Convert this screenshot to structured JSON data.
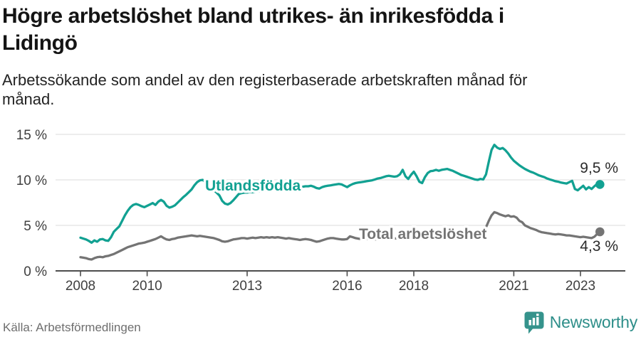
{
  "page": {
    "title_lines": [
      "Högre arbetslöshet bland utrikes- än inrikesfödda i",
      "Lidingö"
    ],
    "subtitle_lines": [
      "Arbetssökande som andel av den registerbaserade arbetskraften månad för",
      "månad."
    ],
    "source": "Källa: Arbetsförmedlingen",
    "brand": "Newsworthy"
  },
  "colors": {
    "foreign_born_line": "#12a192",
    "total_line": "#747474",
    "grid": "#e2e2e2",
    "axis": "#4d4d4d",
    "axis_text": "#3f3f3f",
    "value_label_text": "#2b2b2b",
    "logo_teal": "#35938c"
  },
  "chart_data": {
    "type": "line",
    "title": "Högre arbetslöshet bland utrikes- än inrikesfödda i Lidingö",
    "subtitle": "Arbetssökande som andel av den registerbaserade arbetskraften månad för månad.",
    "x_unit": "month",
    "x_start": "2008-01",
    "x_end": "2023-08",
    "xtick_years": [
      2008,
      2010,
      2013,
      2016,
      2018,
      2021,
      2023
    ],
    "ytick_values": [
      0,
      5,
      10,
      15
    ],
    "ytick_labels": [
      "0 %",
      "5 %",
      "10 %",
      "15 %"
    ],
    "ylim": [
      0,
      16.5
    ],
    "grid": "horizontal",
    "legend_position": "inline-labels",
    "source": "Källa: Arbetsförmedlingen",
    "series": [
      {
        "name": "Utlandsfödda",
        "color": "#12a192",
        "end_label": "9,5 %",
        "end_value": 9.5,
        "values": [
          3.65,
          3.55,
          3.45,
          3.3,
          3.1,
          3.35,
          3.2,
          3.45,
          3.5,
          3.35,
          3.3,
          3.7,
          4.3,
          4.6,
          4.9,
          5.5,
          6.1,
          6.6,
          7.0,
          7.25,
          7.35,
          7.25,
          7.1,
          7.0,
          7.15,
          7.3,
          7.45,
          7.25,
          7.6,
          7.8,
          7.6,
          7.15,
          6.95,
          7.05,
          7.2,
          7.5,
          7.8,
          8.1,
          8.35,
          8.65,
          8.95,
          9.4,
          9.75,
          9.95,
          10.0,
          9.75,
          9.45,
          9.1,
          8.85,
          8.6,
          8.3,
          7.7,
          7.4,
          7.3,
          7.45,
          7.75,
          8.1,
          8.45,
          8.55,
          8.6,
          8.6,
          8.65,
          8.65,
          8.7,
          8.75,
          8.75,
          8.8,
          8.8,
          8.85,
          8.9,
          8.95,
          9.0,
          9.0,
          9.05,
          9.05,
          9.1,
          9.15,
          9.15,
          9.2,
          9.2,
          9.25,
          9.3,
          9.3,
          9.35,
          9.25,
          9.1,
          9.05,
          9.2,
          9.3,
          9.35,
          9.4,
          9.45,
          9.5,
          9.55,
          9.5,
          9.35,
          9.2,
          9.4,
          9.55,
          9.65,
          9.7,
          9.75,
          9.8,
          9.85,
          9.9,
          9.95,
          10.05,
          10.15,
          10.2,
          10.3,
          10.4,
          10.45,
          10.4,
          10.35,
          10.4,
          10.6,
          11.1,
          10.4,
          10.1,
          10.55,
          10.9,
          10.4,
          9.8,
          9.65,
          10.3,
          10.75,
          10.95,
          11.0,
          11.1,
          11.0,
          11.1,
          11.15,
          11.2,
          11.1,
          11.0,
          10.85,
          10.7,
          10.55,
          10.45,
          10.35,
          10.25,
          10.15,
          10.05,
          10.0,
          10.1,
          10.05,
          10.6,
          12.0,
          13.3,
          13.85,
          13.55,
          13.4,
          13.5,
          13.25,
          12.9,
          12.45,
          12.1,
          11.85,
          11.6,
          11.4,
          11.2,
          11.05,
          10.9,
          10.8,
          10.65,
          10.5,
          10.4,
          10.3,
          10.15,
          10.05,
          9.95,
          9.85,
          9.8,
          9.7,
          9.65,
          9.6,
          9.75,
          9.9,
          9.0,
          8.85,
          9.1,
          9.35,
          8.95,
          9.2,
          9.0,
          9.3,
          9.55,
          9.5
        ]
      },
      {
        "name": "Total arbetslöshet",
        "color": "#747474",
        "end_label": "4,3 %",
        "end_value": 4.3,
        "values": [
          1.5,
          1.45,
          1.4,
          1.3,
          1.25,
          1.4,
          1.5,
          1.55,
          1.5,
          1.6,
          1.65,
          1.75,
          1.85,
          2.0,
          2.15,
          2.3,
          2.45,
          2.6,
          2.7,
          2.8,
          2.9,
          3.0,
          3.05,
          3.1,
          3.2,
          3.3,
          3.4,
          3.5,
          3.65,
          3.8,
          3.6,
          3.45,
          3.4,
          3.5,
          3.55,
          3.65,
          3.7,
          3.75,
          3.8,
          3.85,
          3.9,
          3.85,
          3.8,
          3.85,
          3.8,
          3.75,
          3.7,
          3.65,
          3.6,
          3.5,
          3.4,
          3.25,
          3.2,
          3.25,
          3.35,
          3.45,
          3.5,
          3.55,
          3.6,
          3.6,
          3.55,
          3.6,
          3.65,
          3.6,
          3.65,
          3.7,
          3.65,
          3.7,
          3.65,
          3.7,
          3.65,
          3.7,
          3.65,
          3.6,
          3.55,
          3.6,
          3.55,
          3.5,
          3.45,
          3.4,
          3.45,
          3.5,
          3.45,
          3.4,
          3.3,
          3.2,
          3.25,
          3.35,
          3.45,
          3.55,
          3.6,
          3.6,
          3.55,
          3.5,
          3.45,
          3.45,
          3.5,
          3.8,
          3.7,
          3.6,
          3.55,
          3.5,
          3.45,
          3.5,
          3.55,
          3.5,
          3.45,
          3.5,
          3.5,
          3.55,
          3.6,
          3.55,
          3.5,
          3.55,
          3.6,
          3.55,
          3.6,
          3.65,
          3.6,
          3.65,
          3.6,
          3.55,
          3.5,
          3.55,
          3.6,
          3.55,
          3.6,
          3.65,
          3.6,
          3.65,
          3.7,
          3.65,
          3.7,
          3.65,
          3.7,
          3.75,
          3.7,
          3.75,
          3.8,
          3.75,
          3.8,
          3.85,
          3.9,
          3.95,
          4.1,
          4.3,
          4.8,
          5.5,
          6.1,
          6.45,
          6.35,
          6.2,
          6.1,
          6.0,
          6.1,
          5.95,
          6.0,
          5.85,
          5.5,
          5.35,
          5.0,
          4.85,
          4.7,
          4.6,
          4.5,
          4.35,
          4.25,
          4.2,
          4.15,
          4.1,
          4.05,
          4.0,
          4.05,
          4.0,
          3.95,
          3.9,
          3.9,
          3.85,
          3.8,
          3.75,
          3.7,
          3.75,
          3.7,
          3.65,
          3.6,
          3.75,
          4.05,
          4.3
        ]
      }
    ]
  }
}
